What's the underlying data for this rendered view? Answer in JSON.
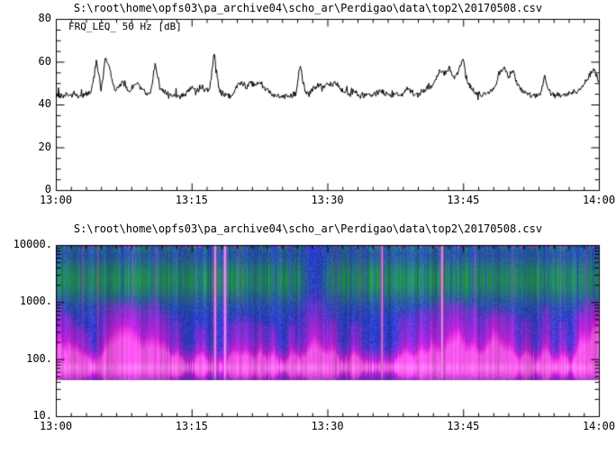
{
  "window": {
    "background": "#ffffff",
    "text_color": "#000000"
  },
  "chart_data": [
    {
      "type": "line",
      "title": "S:\\root\\home\\opfs03\\pa_archive04\\scho_ar\\Perdigao\\data\\top2\\20170508.csv",
      "legend": "FRQ_LEQ_ 50 Hz [dB]",
      "line_color": "#000000",
      "x_tick_labels": [
        "13:00",
        "13:15",
        "13:30",
        "13:45",
        "14:00"
      ],
      "x_minor_subdivisions": 9,
      "x_range_min": [
        0,
        60
      ],
      "ylim": [
        0,
        80
      ],
      "y_tick_labels": [
        "0",
        "20",
        "40",
        "60",
        "80"
      ],
      "y_major_step": 20,
      "y_minor_step": 5,
      "sample_interval_min": 0.5,
      "noise_amplitude_db": 1.6,
      "values_db": [
        44.5,
        43.8,
        44.6,
        43.5,
        45.8,
        44.2,
        44.8,
        45.2,
        47.5,
        60.5,
        46.5,
        62.0,
        56.0,
        47.0,
        48.5,
        51.5,
        46.0,
        48.0,
        50.0,
        47.0,
        45.5,
        46.5,
        59.5,
        48.0,
        46.0,
        45.0,
        44.5,
        44.0,
        44.5,
        45.5,
        47.5,
        46.0,
        48.5,
        46.5,
        47.0,
        64.5,
        47.0,
        45.0,
        44.0,
        44.5,
        49.5,
        50.5,
        48.0,
        50.0,
        49.0,
        50.5,
        47.5,
        46.0,
        45.0,
        44.0,
        43.8,
        44.2,
        44.0,
        45.0,
        59.0,
        46.0,
        45.0,
        47.5,
        49.5,
        48.0,
        50.0,
        49.0,
        50.5,
        47.0,
        46.0,
        45.0,
        46.5,
        44.5,
        44.0,
        45.0,
        44.5,
        45.5,
        46.5,
        44.5,
        44.0,
        45.0,
        44.5,
        45.5,
        47.0,
        45.0,
        44.5,
        46.0,
        47.5,
        49.0,
        52.0,
        56.5,
        54.0,
        57.5,
        52.0,
        55.0,
        61.5,
        50.0,
        47.0,
        45.5,
        44.5,
        45.0,
        46.0,
        48.0,
        55.0,
        57.5,
        53.0,
        56.0,
        49.0,
        46.5,
        45.0,
        44.0,
        43.8,
        44.5,
        53.0,
        46.0,
        44.5,
        44.0,
        44.5,
        45.0,
        44.5,
        46.0,
        48.0,
        50.5,
        53.5,
        56.5,
        50.0
      ]
    },
    {
      "type": "heatmap",
      "subtype": "spectrogram",
      "title": "S:\\root\\home\\opfs03\\pa_archive04\\scho_ar\\Perdigao\\data\\top2\\20170508.csv",
      "x_tick_labels": [
        "13:00",
        "13:15",
        "13:30",
        "13:45",
        "14:00"
      ],
      "x_minor_subdivisions": 9,
      "x_range_min": [
        0,
        60
      ],
      "y_scale": "log10",
      "ylim_hz": [
        10,
        10000
      ],
      "y_tick_labels": [
        "10.",
        "100.",
        "1000.",
        "10000."
      ],
      "data_floor_hz": 43,
      "palette": {
        "base_blue": "#2a3cc8",
        "green": "#22964a",
        "magenta": "#e01ad8",
        "hot_pink": "#ff8af2",
        "white_core": "#ffe4ff",
        "top_dark": "#201a78",
        "bottom_dark": "#502098",
        "blank": "#ffffff"
      },
      "bands": {
        "green_band": {
          "center_log_hz": 3.4,
          "sigma": 0.42
        },
        "magenta_band": {
          "center_log_hz": 1.88,
          "sigma": 0.25
        },
        "bright_core": {
          "center_log_hz": 1.86,
          "sigma": 0.1
        },
        "top_dark_above_log_hz": 3.94,
        "bottom_dark_below_log_hz": 1.76
      },
      "blobs": [
        {
          "t": 0.3,
          "f": 900,
          "w": 0.4,
          "s": 0.9
        },
        {
          "t": 1.4,
          "f": 500,
          "w": 0.5,
          "s": 0.8
        },
        {
          "t": 2.4,
          "f": 300,
          "w": 0.4,
          "s": 0.6
        },
        {
          "t": 3.3,
          "f": 250,
          "w": 0.3,
          "s": 0.5
        },
        {
          "t": 6.0,
          "f": 800,
          "w": 0.9,
          "s": 0.9
        },
        {
          "t": 7.6,
          "f": 900,
          "w": 0.8,
          "s": 0.85
        },
        {
          "t": 9.0,
          "f": 700,
          "w": 0.9,
          "s": 0.8
        },
        {
          "t": 10.8,
          "f": 900,
          "w": 0.7,
          "s": 0.85
        },
        {
          "t": 12.1,
          "f": 500,
          "w": 0.5,
          "s": 0.65
        },
        {
          "t": 13.4,
          "f": 400,
          "w": 0.4,
          "s": 0.5
        },
        {
          "t": 16.0,
          "f": 300,
          "w": 0.5,
          "s": 0.55
        },
        {
          "t": 19.6,
          "f": 350,
          "w": 0.5,
          "s": 0.6
        },
        {
          "t": 21.0,
          "f": 400,
          "w": 0.6,
          "s": 0.6
        },
        {
          "t": 22.6,
          "f": 350,
          "w": 0.5,
          "s": 0.55
        },
        {
          "t": 24.0,
          "f": 300,
          "w": 0.4,
          "s": 0.5
        },
        {
          "t": 26.1,
          "f": 350,
          "w": 0.4,
          "s": 0.55
        },
        {
          "t": 28.6,
          "f": 1800,
          "w": 1.0,
          "s": 0.95,
          "halo": true
        },
        {
          "t": 30.6,
          "f": 400,
          "w": 0.5,
          "s": 0.6
        },
        {
          "t": 33.0,
          "f": 350,
          "w": 0.5,
          "s": 0.55
        },
        {
          "t": 38.6,
          "f": 500,
          "w": 0.6,
          "s": 0.65
        },
        {
          "t": 40.3,
          "f": 600,
          "w": 0.5,
          "s": 0.7
        },
        {
          "t": 41.6,
          "f": 700,
          "w": 0.5,
          "s": 0.75
        },
        {
          "t": 43.3,
          "f": 900,
          "w": 0.8,
          "s": 0.9
        },
        {
          "t": 44.6,
          "f": 800,
          "w": 0.6,
          "s": 0.85
        },
        {
          "t": 46.1,
          "f": 700,
          "w": 0.6,
          "s": 0.8
        },
        {
          "t": 47.6,
          "f": 500,
          "w": 0.5,
          "s": 0.7
        },
        {
          "t": 48.4,
          "f": 600,
          "w": 0.4,
          "s": 0.75
        },
        {
          "t": 49.2,
          "f": 600,
          "w": 0.5,
          "s": 0.75
        },
        {
          "t": 50.3,
          "f": 500,
          "w": 0.5,
          "s": 0.7
        },
        {
          "t": 52.0,
          "f": 400,
          "w": 0.5,
          "s": 0.6
        },
        {
          "t": 54.1,
          "f": 700,
          "w": 0.5,
          "s": 0.75
        },
        {
          "t": 56.0,
          "f": 350,
          "w": 0.4,
          "s": 0.5
        },
        {
          "t": 57.9,
          "f": 600,
          "w": 0.5,
          "s": 0.7
        },
        {
          "t": 59.1,
          "f": 900,
          "w": 0.8,
          "s": 0.9
        },
        {
          "t": 59.9,
          "f": 800,
          "w": 0.5,
          "s": 0.85
        }
      ],
      "streaks": [
        {
          "t": 17.55,
          "w": 0.16,
          "s": 1.0
        },
        {
          "t": 18.65,
          "w": 0.16,
          "s": 0.95
        },
        {
          "t": 36.0,
          "w": 0.13,
          "s": 0.95
        },
        {
          "t": 42.65,
          "w": 0.15,
          "s": 1.0
        },
        {
          "t": 2.9,
          "w": 0.07,
          "s": 0.5
        },
        {
          "t": 4.6,
          "w": 0.07,
          "s": 0.5
        },
        {
          "t": 8.4,
          "w": 0.07,
          "s": 0.45
        },
        {
          "t": 11.0,
          "w": 0.07,
          "s": 0.5
        },
        {
          "t": 20.3,
          "w": 0.07,
          "s": 0.4
        },
        {
          "t": 30.9,
          "w": 0.07,
          "s": 0.45
        },
        {
          "t": 33.6,
          "w": 0.07,
          "s": 0.4
        },
        {
          "t": 46.3,
          "w": 0.07,
          "s": 0.4
        },
        {
          "t": 50.4,
          "w": 0.07,
          "s": 0.4
        },
        {
          "t": 55.7,
          "w": 0.07,
          "s": 0.35
        },
        {
          "t": 58.6,
          "w": 0.07,
          "s": 0.45
        }
      ]
    }
  ]
}
